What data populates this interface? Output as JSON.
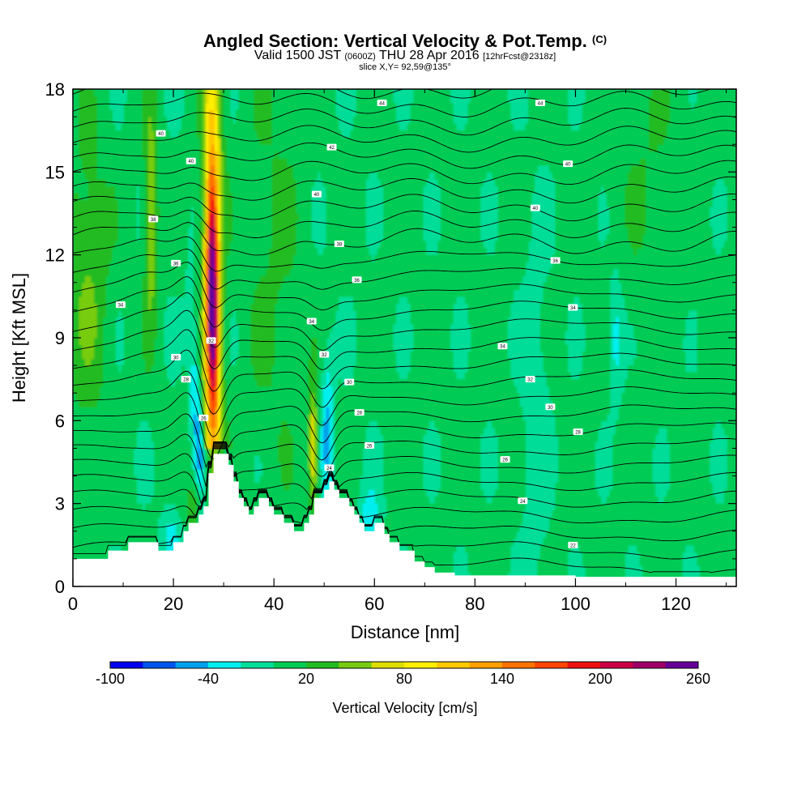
{
  "header": {
    "title": "Angled Section: Vertical Velocity & Pot.Temp.",
    "title_mark": "(C)",
    "valid_prefix": "Valid 1500 JST",
    "valid_z": "(0600Z)",
    "valid_date": "THU 28 Apr 2016",
    "valid_fcst": "[12hrFcst@2318z]",
    "slice": "slice X,Y= 92,59@135°"
  },
  "chart_data": {
    "type": "heatmap",
    "xlabel": "Distance [nm]",
    "ylabel": "Height [Kft MSL]",
    "xlim": [
      0,
      132
    ],
    "ylim": [
      0,
      18
    ],
    "x_ticks": [
      0,
      20,
      40,
      60,
      80,
      100,
      120
    ],
    "y_ticks": [
      0,
      3,
      6,
      9,
      12,
      15,
      18
    ],
    "background_value": 5,
    "field": "Vertical Velocity [cm/s]",
    "features": [
      {
        "name": "main updraft",
        "x": 28,
        "height_range": [
          5,
          18
        ],
        "peak_value": 210
      },
      {
        "name": "main downdraft",
        "x": 24.5,
        "height_range": [
          1.2,
          12
        ],
        "peak_value": -50
      },
      {
        "name": "secondary updraft",
        "x": 47.8,
        "height_range": [
          3.2,
          7
        ],
        "peak_value": 85
      },
      {
        "name": "secondary downdraft",
        "x": 50.5,
        "height_range": [
          3.5,
          8
        ],
        "peak_value": -45
      },
      {
        "name": "upper updraft",
        "x": 15.5,
        "height_range": [
          9,
          17.5
        ],
        "peak_value": 60
      },
      {
        "name": "low-level updraft",
        "x": 25,
        "height_range": [
          2,
          4.8
        ],
        "peak_value": 50
      },
      {
        "name": "eastern descent band",
        "x": 92,
        "height_range": [
          0.4,
          12
        ],
        "peak_value": -15
      },
      {
        "name": "eastern descent band",
        "x": 108,
        "height_range": [
          7,
          11
        ],
        "peak_value": -35
      }
    ],
    "terrain": [
      [
        0,
        1
      ],
      [
        5,
        1
      ],
      [
        7,
        1.3
      ],
      [
        9,
        1.3
      ],
      [
        11,
        1.6
      ],
      [
        15,
        1.6
      ],
      [
        17,
        1.3
      ],
      [
        20,
        1.6
      ],
      [
        22,
        2
      ],
      [
        23,
        2.3
      ],
      [
        25,
        2.6
      ],
      [
        26,
        2.9
      ],
      [
        27,
        4.1
      ],
      [
        28,
        4.8
      ],
      [
        30,
        4.8
      ],
      [
        31,
        4.4
      ],
      [
        32,
        3.8
      ],
      [
        33,
        3.2
      ],
      [
        34,
        2.9
      ],
      [
        35,
        2.6
      ],
      [
        36,
        2.9
      ],
      [
        37,
        3.2
      ],
      [
        38,
        3.2
      ],
      [
        39,
        2.9
      ],
      [
        40,
        2.6
      ],
      [
        42,
        2.3
      ],
      [
        44,
        2.0
      ],
      [
        46,
        2.3
      ],
      [
        47,
        2.6
      ],
      [
        48,
        3.2
      ],
      [
        50,
        3.5
      ],
      [
        51,
        3.8
      ],
      [
        52,
        3.5
      ],
      [
        53,
        3.2
      ],
      [
        55,
        2.9
      ],
      [
        56,
        2.6
      ],
      [
        57,
        2.3
      ],
      [
        58,
        2.0
      ],
      [
        60,
        2.3
      ],
      [
        62,
        1.9
      ],
      [
        63,
        1.6
      ],
      [
        65,
        1.3
      ],
      [
        68,
        0.9
      ],
      [
        70,
        0.7
      ],
      [
        72,
        0.5
      ],
      [
        76,
        0.4
      ],
      [
        100,
        0.35
      ],
      [
        132,
        0.35
      ]
    ],
    "contour_labels": [
      {
        "x": 17.5,
        "y": 16.4,
        "text": "40"
      },
      {
        "x": 23.5,
        "y": 15.4,
        "text": "40"
      },
      {
        "x": 16.0,
        "y": 13.3,
        "text": "38"
      },
      {
        "x": 20.5,
        "y": 11.7,
        "text": "36"
      },
      {
        "x": 9.5,
        "y": 10.2,
        "text": "34"
      },
      {
        "x": 27.5,
        "y": 8.9,
        "text": "32"
      },
      {
        "x": 20.5,
        "y": 8.3,
        "text": "30"
      },
      {
        "x": 22.5,
        "y": 7.5,
        "text": "28"
      },
      {
        "x": 26.0,
        "y": 6.1,
        "text": "26"
      },
      {
        "x": 61.5,
        "y": 17.5,
        "text": "44"
      },
      {
        "x": 93.0,
        "y": 17.5,
        "text": "44"
      },
      {
        "x": 51.5,
        "y": 15.9,
        "text": "42"
      },
      {
        "x": 98.5,
        "y": 15.3,
        "text": "40"
      },
      {
        "x": 48.5,
        "y": 14.2,
        "text": "40"
      },
      {
        "x": 92.0,
        "y": 13.7,
        "text": "40"
      },
      {
        "x": 53.0,
        "y": 12.4,
        "text": "38"
      },
      {
        "x": 96.0,
        "y": 11.8,
        "text": "36"
      },
      {
        "x": 56.5,
        "y": 11.1,
        "text": "36"
      },
      {
        "x": 99.5,
        "y": 10.1,
        "text": "34"
      },
      {
        "x": 47.5,
        "y": 9.6,
        "text": "34"
      },
      {
        "x": 85.5,
        "y": 8.7,
        "text": "34"
      },
      {
        "x": 50.0,
        "y": 8.4,
        "text": "32"
      },
      {
        "x": 91.0,
        "y": 7.5,
        "text": "32"
      },
      {
        "x": 55.0,
        "y": 7.4,
        "text": "30"
      },
      {
        "x": 57.0,
        "y": 6.3,
        "text": "28"
      },
      {
        "x": 95.0,
        "y": 6.5,
        "text": "30"
      },
      {
        "x": 100.5,
        "y": 5.6,
        "text": "28"
      },
      {
        "x": 59.0,
        "y": 5.1,
        "text": "26"
      },
      {
        "x": 86.0,
        "y": 4.6,
        "text": "26"
      },
      {
        "x": 51.0,
        "y": 4.3,
        "text": "24"
      },
      {
        "x": 89.5,
        "y": 3.1,
        "text": "24"
      },
      {
        "x": 99.5,
        "y": 1.5,
        "text": "22"
      }
    ]
  },
  "colorbar": {
    "label": "Vertical Velocity [cm/s]",
    "tick_labels": [
      "-100",
      "-40",
      "20",
      "80",
      "140",
      "200",
      "260"
    ],
    "colors": [
      "#0000ee",
      "#0055ee",
      "#00a2ee",
      "#00eeee",
      "#00dd99",
      "#00cc55",
      "#22bb22",
      "#77cc11",
      "#dddd00",
      "#ffee00",
      "#ffc800",
      "#ffa000",
      "#ff7300",
      "#ff4500",
      "#ee1111",
      "#cc0044",
      "#a00066",
      "#660099"
    ]
  }
}
